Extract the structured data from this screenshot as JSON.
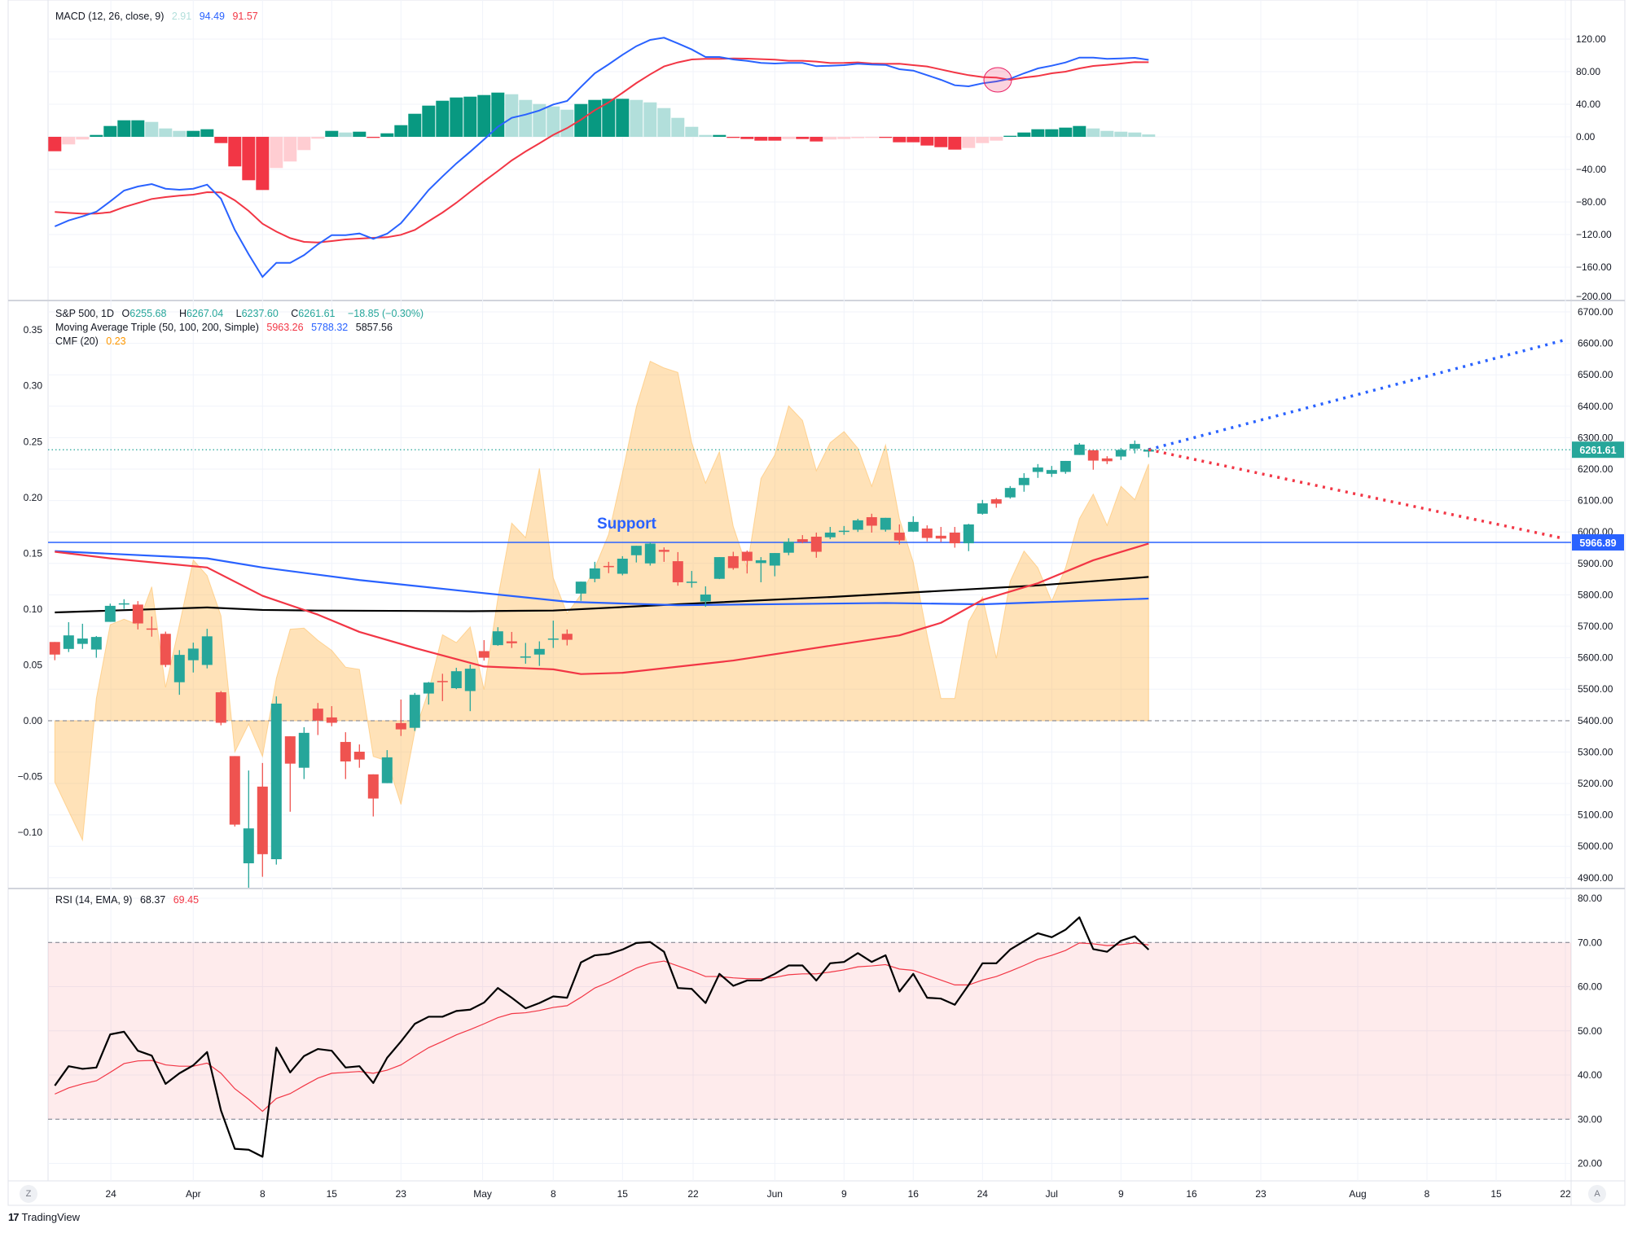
{
  "colors": {
    "up": "#26a69a",
    "down": "#ef5350",
    "hist_up_strong": "#089981",
    "hist_up_weak": "#b2dfdb",
    "hist_down_strong": "#f23645",
    "hist_down_weak": "#ffcdd2",
    "macd_line": "#2962ff",
    "signal_line": "#f23645",
    "ma50": "#f23645",
    "ma100": "#2962ff",
    "ma200": "#000000",
    "cmf_fill": "#ffb74d",
    "rsi_line": "#000000",
    "rsi_ema": "#f23645",
    "support": "#2962ff",
    "last_price": "#26a69a"
  },
  "macd_legend": {
    "title": "MACD (12, 26, close, 9)",
    "hist": "2.91",
    "macd": "94.49",
    "signal": "91.57"
  },
  "price_legend": {
    "symbol": "S&P 500, 1D",
    "o_label": "O",
    "o": "6255.68",
    "h_label": "H",
    "h": "6267.04",
    "l_label": "L",
    "l": "6237.60",
    "c_label": "C",
    "c": "6261.61",
    "change": "−18.85 (−0.30%)",
    "ma_title": "Moving Average Triple (50, 100, 200, Simple)",
    "ma50": "5963.26",
    "ma100": "5788.32",
    "ma200": "5857.56",
    "cmf_title": "CMF (20)",
    "cmf": "0.23"
  },
  "rsi_legend": {
    "title": "RSI (14, EMA, 9)",
    "rsi": "68.37",
    "ema": "69.45"
  },
  "annotation": {
    "support_text": "Support",
    "support_price": 5966.89,
    "support_label": "5966.89",
    "last_price": 6261.61,
    "last_price_label": "6261.61"
  },
  "projections": [
    {
      "name": "bull",
      "color": "#2962ff",
      "from_bar": 79,
      "from_price": 6262,
      "to_bar": 108.9,
      "to_price": 6609
    },
    {
      "name": "bear",
      "color": "#f23645",
      "from_bar": 79,
      "from_price": 6262,
      "to_bar": 108.9,
      "to_price": 5980
    }
  ],
  "macd_marker": {
    "bar": 68.1,
    "value": 70
  },
  "axes": {
    "macd": [
      "120.00",
      "80.00",
      "40.00",
      "0.00",
      "−40.00",
      "−80.00",
      "−120.00",
      "−160.00",
      "−200.00"
    ],
    "price": [
      "6700.00",
      "6600.00",
      "6500.00",
      "6400.00",
      "6300.00",
      "6200.00",
      "6100.00",
      "6000.00",
      "5900.00",
      "5800.00",
      "5700.00",
      "5600.00",
      "5500.00",
      "5400.00",
      "5300.00",
      "5200.00",
      "5100.00",
      "5000.00",
      "4900.00"
    ],
    "cmf": [
      "0.35",
      "0.30",
      "0.25",
      "0.20",
      "0.15",
      "0.10",
      "0.05",
      "0.00",
      "−0.05",
      "−0.10"
    ],
    "rsi": [
      "80.00",
      "70.00",
      "60.00",
      "50.00",
      "40.00",
      "30.00",
      "20.00"
    ],
    "time": [
      {
        "label": "24",
        "bar": 4.05
      },
      {
        "label": "Apr",
        "bar": 10
      },
      {
        "label": "8",
        "bar": 15
      },
      {
        "label": "15",
        "bar": 20
      },
      {
        "label": "23",
        "bar": 25
      },
      {
        "label": "May",
        "bar": 30.9
      },
      {
        "label": "8",
        "bar": 36
      },
      {
        "label": "15",
        "bar": 41
      },
      {
        "label": "22",
        "bar": 46.1
      },
      {
        "label": "Jun",
        "bar": 52
      },
      {
        "label": "9",
        "bar": 57
      },
      {
        "label": "16",
        "bar": 62
      },
      {
        "label": "24",
        "bar": 67
      },
      {
        "label": "Jul",
        "bar": 72
      },
      {
        "label": "9",
        "bar": 77
      },
      {
        "label": "16",
        "bar": 82.1
      },
      {
        "label": "23",
        "bar": 87.1
      },
      {
        "label": "Aug",
        "bar": 94.1
      },
      {
        "label": "8",
        "bar": 99.1
      },
      {
        "label": "15",
        "bar": 104.1
      },
      {
        "label": "22",
        "bar": 109.1
      }
    ]
  },
  "buttons": {
    "zoom_left": "Z",
    "auto_scale": "A"
  },
  "branding": {
    "logo_mark": "17",
    "name": "TradingView"
  },
  "chart_data": {
    "type": "candlestick",
    "title": "S&P 500, 1D",
    "candles_ohlc": [
      [
        5650,
        5650,
        5592,
        5610
      ],
      [
        5628,
        5713,
        5618,
        5671
      ],
      [
        5644,
        5708,
        5628,
        5661
      ],
      [
        5626,
        5669,
        5600,
        5666
      ],
      [
        5714,
        5772,
        5714,
        5765
      ],
      [
        5770,
        5786,
        5755,
        5773
      ],
      [
        5769,
        5780,
        5690,
        5709
      ],
      [
        5693,
        5731,
        5667,
        5690
      ],
      [
        5676,
        5683,
        5570,
        5577
      ],
      [
        5522,
        5624,
        5482,
        5609
      ],
      [
        5592,
        5648,
        5553,
        5629
      ],
      [
        5577,
        5692,
        5566,
        5668
      ],
      [
        5490,
        5494,
        5385,
        5393
      ],
      [
        5287,
        5287,
        5063,
        5069
      ],
      [
        4946,
        5241,
        4868,
        5057
      ],
      [
        5190,
        5265,
        4903,
        4975
      ],
      [
        4959,
        5477,
        4942,
        5454
      ],
      [
        5350,
        5350,
        5110,
        5263
      ],
      [
        5250,
        5379,
        5214,
        5361
      ],
      [
        5438,
        5456,
        5354,
        5400
      ],
      [
        5410,
        5446,
        5382,
        5393
      ],
      [
        5332,
        5363,
        5214,
        5270
      ],
      [
        5301,
        5324,
        5250,
        5276
      ],
      [
        5229,
        5229,
        5095,
        5152
      ],
      [
        5201,
        5306,
        5201,
        5283
      ],
      [
        5392,
        5467,
        5351,
        5372
      ],
      [
        5377,
        5488,
        5367,
        5482
      ],
      [
        5486,
        5523,
        5451,
        5521
      ],
      [
        5526,
        5549,
        5462,
        5523
      ],
      [
        5503,
        5568,
        5500,
        5557
      ],
      [
        5494,
        5578,
        5430,
        5565
      ],
      [
        5621,
        5656,
        5591,
        5600
      ],
      [
        5640,
        5697,
        5638,
        5684
      ],
      [
        5652,
        5682,
        5631,
        5646
      ],
      [
        5602,
        5647,
        5581,
        5604
      ],
      [
        5610,
        5652,
        5574,
        5628
      ],
      [
        5659,
        5718,
        5631,
        5661
      ],
      [
        5676,
        5690,
        5639,
        5657
      ],
      [
        5804,
        5842,
        5781,
        5842
      ],
      [
        5851,
        5905,
        5840,
        5884
      ],
      [
        5892,
        5905,
        5869,
        5888
      ],
      [
        5867,
        5923,
        5862,
        5915
      ],
      [
        5926,
        5956,
        5903,
        5956
      ],
      [
        5900,
        5967,
        5893,
        5963
      ],
      [
        5943,
        5951,
        5905,
        5937
      ],
      [
        5907,
        5936,
        5829,
        5840
      ],
      [
        5838,
        5876,
        5823,
        5842
      ],
      [
        5779,
        5827,
        5762,
        5801
      ],
      [
        5851,
        5920,
        5850,
        5920
      ],
      [
        5923,
        5937,
        5880,
        5885
      ],
      [
        5937,
        5941,
        5868,
        5908
      ],
      [
        5901,
        5920,
        5840,
        5910
      ],
      [
        5893,
        5933,
        5859,
        5933
      ],
      [
        5934,
        5980,
        5926,
        5969
      ],
      [
        5977,
        5990,
        5964,
        5968
      ],
      [
        5985,
        5998,
        5918,
        5937
      ],
      [
        5983,
        6016,
        5977,
        5998
      ],
      [
        6002,
        6019,
        5991,
        6004
      ],
      [
        6007,
        6042,
        6000,
        6037
      ],
      [
        6047,
        6058,
        5998,
        6020
      ],
      [
        6007,
        6045,
        6001,
        6045
      ],
      [
        5998,
        6024,
        5960,
        5973
      ],
      [
        6001,
        6050,
        6000,
        6032
      ],
      [
        6011,
        6021,
        5970,
        5981
      ],
      [
        5988,
        6016,
        5968,
        5979
      ],
      [
        5998,
        6016,
        5950,
        5964
      ],
      [
        5964,
        6026,
        5939,
        6024
      ],
      [
        6058,
        6102,
        6055,
        6091
      ],
      [
        6104,
        6108,
        6077,
        6090
      ],
      [
        6110,
        6146,
        6106,
        6140
      ],
      [
        6149,
        6187,
        6128,
        6172
      ],
      [
        6191,
        6216,
        6172,
        6205
      ],
      [
        6185,
        6210,
        6175,
        6197
      ],
      [
        6191,
        6226,
        6185,
        6226
      ],
      [
        6245,
        6283,
        6245,
        6278
      ],
      [
        6260,
        6260,
        6198,
        6227
      ],
      [
        6234,
        6241,
        6216,
        6225
      ],
      [
        6240,
        6267,
        6229,
        6261
      ],
      [
        6265,
        6291,
        6250,
        6280
      ],
      [
        6255.68,
        6267.04,
        6237.6,
        6261.61
      ]
    ],
    "ma50_points": [
      [
        0,
        5937
      ],
      [
        4,
        5916
      ],
      [
        11,
        5887
      ],
      [
        15,
        5797
      ],
      [
        19,
        5737
      ],
      [
        22,
        5682
      ],
      [
        26,
        5631
      ],
      [
        31,
        5572
      ],
      [
        36,
        5563
      ],
      [
        38,
        5548
      ],
      [
        41,
        5552
      ],
      [
        49,
        5591
      ],
      [
        56,
        5638
      ],
      [
        61,
        5671
      ],
      [
        64,
        5711
      ],
      [
        67,
        5784
      ],
      [
        71,
        5837
      ],
      [
        75,
        5910
      ],
      [
        79,
        5963
      ]
    ],
    "ma100_points": [
      [
        0,
        5939
      ],
      [
        11,
        5916
      ],
      [
        15,
        5887
      ],
      [
        22,
        5847
      ],
      [
        30,
        5810
      ],
      [
        37,
        5778
      ],
      [
        45,
        5767
      ],
      [
        60,
        5774
      ],
      [
        67,
        5770
      ],
      [
        79,
        5788
      ]
    ],
    "ma200_points": [
      [
        0,
        5744
      ],
      [
        11,
        5760
      ],
      [
        15,
        5752
      ],
      [
        19,
        5750
      ],
      [
        30,
        5748
      ],
      [
        36,
        5750
      ],
      [
        45,
        5770
      ],
      [
        56,
        5793
      ],
      [
        67,
        5820
      ],
      [
        71,
        5830
      ],
      [
        79,
        5857
      ]
    ],
    "cmf": [
      -0.055,
      -0.081,
      -0.107,
      0.02,
      0.086,
      0.091,
      0.086,
      0.12,
      0.03,
      0.086,
      0.144,
      0.13,
      0.094,
      -0.028,
      -0.003,
      -0.032,
      0.038,
      0.082,
      0.083,
      0.072,
      0.063,
      0.048,
      0.046,
      -0.032,
      -0.036,
      -0.075,
      -0.01,
      0.027,
      0.077,
      0.07,
      0.084,
      0.028,
      0.11,
      0.177,
      0.164,
      0.226,
      0.128,
      0.096,
      0.113,
      0.137,
      0.167,
      0.222,
      0.281,
      0.322,
      0.316,
      0.312,
      0.249,
      0.213,
      0.241,
      0.174,
      0.137,
      0.217,
      0.238,
      0.282,
      0.269,
      0.224,
      0.249,
      0.259,
      0.244,
      0.21,
      0.247,
      0.181,
      0.142,
      0.077,
      0.02,
      0.02,
      0.089,
      0.111,
      0.056,
      0.125,
      0.152,
      0.137,
      0.107,
      0.137,
      0.181,
      0.203,
      0.175,
      0.21,
      0.198,
      0.23
    ],
    "macd": [
      -110,
      -102.7,
      -97.7,
      -92,
      -79.3,
      -66,
      -61,
      -58,
      -63.7,
      -65,
      -63.7,
      -58.7,
      -76,
      -114.3,
      -144.3,
      -172,
      -154.7,
      -154.7,
      -145.3,
      -132,
      -120.7,
      -120.7,
      -118.7,
      -125.3,
      -119,
      -106,
      -86,
      -65.3,
      -48.7,
      -32.7,
      -18.3,
      -3.3,
      12.3,
      23.3,
      27.3,
      32.3,
      39.7,
      44,
      61.3,
      78,
      89,
      100.7,
      111.3,
      119,
      121.7,
      114.7,
      107.3,
      98,
      98,
      95,
      93.3,
      90.7,
      90,
      90.7,
      90.7,
      86.7,
      87.3,
      88,
      89.7,
      88.7,
      88.3,
      83,
      81.3,
      75.7,
      70,
      63.3,
      62,
      65.7,
      68,
      71.3,
      78,
      84,
      87.3,
      91.3,
      97.3,
      97.3,
      95.7,
      96.3,
      97,
      94.49
    ],
    "histogram": [
      -17.7,
      -9.3,
      -3.3,
      2.3,
      13.3,
      20.3,
      20.3,
      18.3,
      10.3,
      7.3,
      7.3,
      9.3,
      -7.7,
      -36.3,
      -53.3,
      -65.3,
      -38.3,
      -30.3,
      -16.3,
      -2.3,
      7.3,
      5.3,
      6.3,
      -1.3,
      4.3,
      14.3,
      28.3,
      38.3,
      44.3,
      48.3,
      49.3,
      51.3,
      54.3,
      52.3,
      45.3,
      40.3,
      37.3,
      33.3,
      40.3,
      45.3,
      46.7,
      46.7,
      45.3,
      42.3,
      35.3,
      23.3,
      12.3,
      2.3,
      2.3,
      -1.3,
      -2.7,
      -4.7,
      -4.7,
      -2.7,
      -2.7,
      -5.7,
      -3.3,
      -2.7,
      -1.7,
      -1.3,
      -1.3,
      -6.7,
      -6.7,
      -10.7,
      -12.7,
      -15.7,
      -13.7,
      -7.7,
      -4.7,
      1.3,
      5.3,
      9.3,
      9.3,
      11.3,
      13.3,
      10.3,
      7.3,
      6.3,
      5.3,
      2.91
    ],
    "rsi": [
      37.6,
      42.0,
      41.4,
      41.7,
      49.2,
      49.8,
      45.5,
      44.4,
      38.0,
      40.4,
      42.2,
      45.2,
      32.0,
      23.3,
      23.1,
      21.5,
      46.2,
      40.6,
      44.3,
      45.9,
      45.5,
      41.7,
      42.0,
      38.2,
      43.9,
      47.6,
      51.6,
      53.2,
      53.2,
      54.5,
      54.8,
      56.4,
      59.7,
      57.5,
      55.1,
      56.3,
      57.8,
      57.5,
      65.5,
      67.1,
      67.4,
      68.4,
      69.9,
      70.1,
      67.9,
      59.7,
      59.5,
      56.3,
      62.9,
      60.2,
      61.4,
      61.4,
      62.9,
      64.8,
      64.8,
      61.4,
      65.3,
      65.6,
      67.6,
      65.6,
      67.1,
      58.9,
      62.9,
      57.5,
      57.3,
      55.9,
      60.4,
      65.3,
      65.3,
      68.4,
      70.3,
      72.1,
      71.2,
      72.9,
      75.7,
      68.5,
      67.9,
      70.4,
      71.4,
      68.37
    ],
    "rsi_ema": [
      35.7,
      37.1,
      38.0,
      38.7,
      40.6,
      42.6,
      43.2,
      43.3,
      42.3,
      42.0,
      42.0,
      42.7,
      40.4,
      36.9,
      34.5,
      31.8,
      34.7,
      35.8,
      37.6,
      39.3,
      40.4,
      40.6,
      40.8,
      40.4,
      41.1,
      42.3,
      44.3,
      46.2,
      47.6,
      49.1,
      50.3,
      51.6,
      53.0,
      53.9,
      54.1,
      54.6,
      55.3,
      55.7,
      57.6,
      59.7,
      61.0,
      62.6,
      64.2,
      65.3,
      65.8,
      64.7,
      63.6,
      62.3,
      62.3,
      62.0,
      61.8,
      61.8,
      62.1,
      62.7,
      62.9,
      62.9,
      63.3,
      63.8,
      64.5,
      64.7,
      65.0,
      64.0,
      63.7,
      62.6,
      61.5,
      60.4,
      60.4,
      61.5,
      62.3,
      63.5,
      64.8,
      66.2,
      67.1,
      68.2,
      69.9,
      69.7,
      69.3,
      69.5,
      69.9,
      69.45
    ],
    "rsi_bands": [
      70,
      30
    ],
    "price_range": [
      4868,
      6733
    ],
    "cmf_range": [
      -0.15,
      0.35
    ],
    "macd_range": [
      -200,
      168
    ],
    "rsi_range": [
      16,
      82
    ]
  }
}
